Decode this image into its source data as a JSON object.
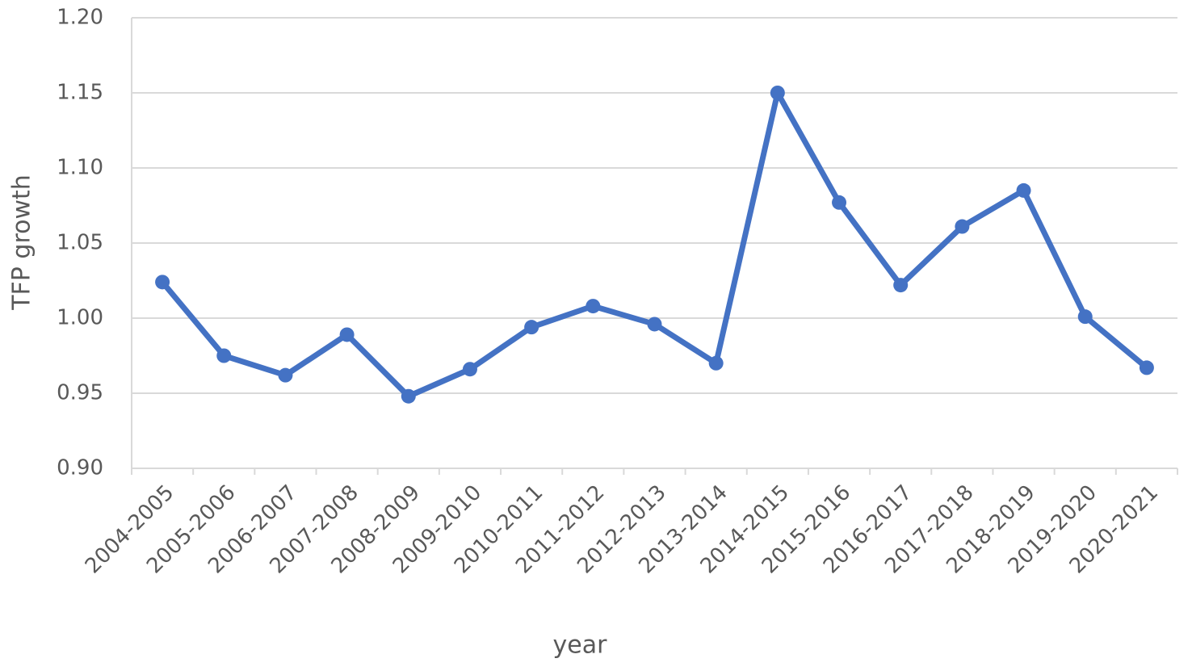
{
  "chart_data": {
    "type": "line",
    "x_label": "year",
    "y_label": "TFP growth",
    "categories": [
      "2004-2005",
      "2005-2006",
      "2006-2007",
      "2007-2008",
      "2008-2009",
      "2009-2010",
      "2010-2011",
      "2011-2012",
      "2012-2013",
      "2013-2014",
      "2014-2015",
      "2015-2016",
      "2016-2017",
      "2017-2018",
      "2018-2019",
      "2019-2020",
      "2020-2021"
    ],
    "series": [
      {
        "name": "TFP growth",
        "color": "#4472c4",
        "values": [
          1.024,
          0.975,
          0.962,
          0.989,
          0.948,
          0.966,
          0.994,
          1.008,
          0.996,
          0.97,
          1.15,
          1.077,
          1.022,
          1.061,
          1.085,
          1.001,
          0.967
        ]
      }
    ],
    "ylim": [
      0.9,
      1.2
    ],
    "yticks": [
      {
        "value": 0.9,
        "label": "0.90"
      },
      {
        "value": 0.95,
        "label": "0.95"
      },
      {
        "value": 1.0,
        "label": "1.00"
      },
      {
        "value": 1.05,
        "label": "1.05"
      },
      {
        "value": 1.1,
        "label": "1.10"
      },
      {
        "value": 1.15,
        "label": "1.15"
      },
      {
        "value": 1.2,
        "label": "1.20"
      }
    ],
    "grid": true
  }
}
